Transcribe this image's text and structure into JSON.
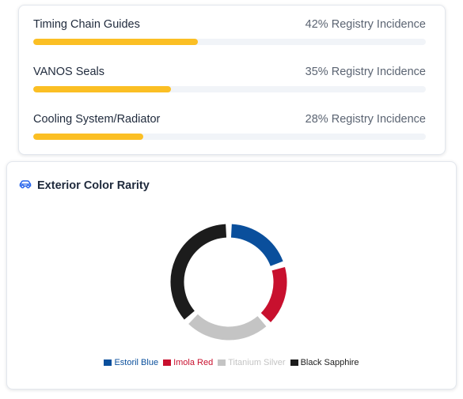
{
  "issues": [
    {
      "name": "Timing Chain Guides",
      "percent": 42,
      "percent_label": "42% Registry Incidence"
    },
    {
      "name": "VANOS Seals",
      "percent": 35,
      "percent_label": "35% Registry Incidence"
    },
    {
      "name": "Cooling System/Radiator",
      "percent": 28,
      "percent_label": "28% Registry Incidence"
    }
  ],
  "issue_bar_color": "#fbbf24",
  "color_rarity": {
    "title": "Exterior Color Rarity",
    "title_icon": "car-icon"
  },
  "chart_data": {
    "type": "pie",
    "style": "donut",
    "categories": [
      "Estoril Blue",
      "Imola Red",
      "Titanium Silver",
      "Black Sapphire"
    ],
    "values": [
      20,
      18,
      25,
      37
    ],
    "colors": [
      "#0a4f9c",
      "#c8102e",
      "#c4c4c4",
      "#1c1c1c"
    ],
    "legend_text_colors": [
      "#0a4f9c",
      "#c8102e",
      "#c4c4c4",
      "#1c1c1c"
    ],
    "legend": "bottom",
    "title": ""
  }
}
